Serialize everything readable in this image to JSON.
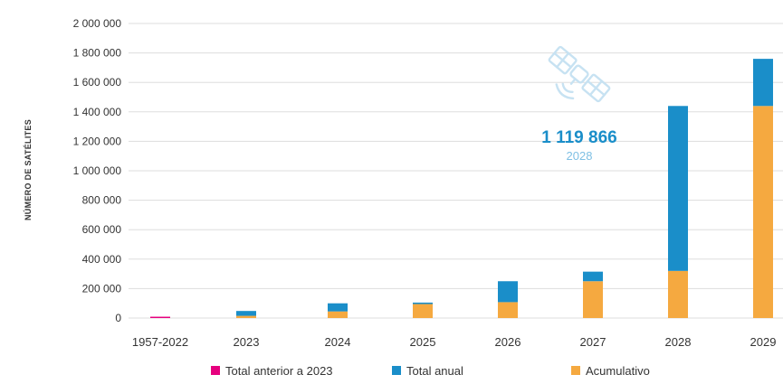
{
  "chart_data": {
    "type": "bar",
    "stacked": true,
    "ylabel": "NÚMERO DE SATÉLITES",
    "ylim": [
      0,
      2000000
    ],
    "y_ticks": [
      0,
      200000,
      400000,
      600000,
      800000,
      1000000,
      1200000,
      1400000,
      1600000,
      1800000,
      2000000
    ],
    "y_tick_labels": [
      "0",
      "200 000",
      "400 000",
      "600 000",
      "800 000",
      "1 000 000",
      "1 200 000",
      "1 400 000",
      "1 600 000",
      "1 800 000",
      "2 000 000"
    ],
    "grid": true,
    "categories": [
      "1957-2022",
      "2023",
      "2024",
      "2025",
      "2026",
      "2027",
      "2028",
      "2029"
    ],
    "series": [
      {
        "name": "Total anterior a 2023",
        "color": "#e6007e",
        "values": [
          9000,
          0,
          0,
          0,
          0,
          0,
          0,
          0
        ]
      },
      {
        "name": "Acumulativo",
        "color": "#f5a940",
        "values": [
          0,
          15000,
          45000,
          95000,
          108000,
          250000,
          320000,
          1440000
        ]
      },
      {
        "name": "Total anual",
        "color": "#1a8ec9",
        "values": [
          0,
          33000,
          55000,
          10000,
          142000,
          65000,
          1120000,
          320000
        ]
      }
    ],
    "legend_order": [
      "Total anterior a 2023",
      "Total anual",
      "Acumulativo"
    ],
    "legend_position": "bottom",
    "annotation": {
      "value": "1 119 866",
      "year": "2028",
      "color": "#1a8ec9",
      "icon": "satellite-icon"
    }
  }
}
